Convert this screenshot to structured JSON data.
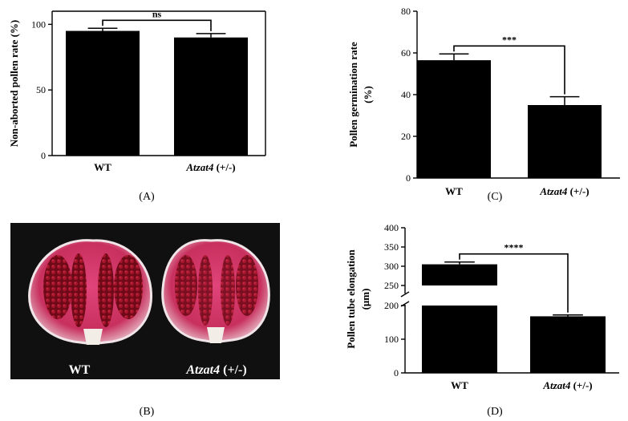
{
  "chart_data": [
    {
      "panel": "A",
      "type": "bar",
      "categories": [
        "WT",
        "Atzat4"
      ],
      "category_suffix": [
        "",
        " (+/-)"
      ],
      "italic_categories": [
        false,
        true
      ],
      "values": [
        95,
        90
      ],
      "errors": [
        2,
        3
      ],
      "ylabel": "Non-aborted pollen rate (%)",
      "ylim": [
        0,
        110
      ],
      "yticks": [
        0,
        50,
        100
      ],
      "significance": "ns"
    },
    {
      "panel": "C",
      "type": "bar",
      "categories": [
        "WT",
        "Atzat4"
      ],
      "category_suffix": [
        "",
        " (+/-)"
      ],
      "italic_categories": [
        false,
        true
      ],
      "values": [
        56.5,
        35
      ],
      "errors": [
        3,
        4
      ],
      "ylabel": "Pollen germination rate",
      "ylabel2": "(%)",
      "ylim": [
        0,
        80
      ],
      "yticks": [
        0,
        20,
        40,
        60,
        80
      ],
      "significance": "***"
    },
    {
      "panel": "D",
      "type": "bar",
      "categories": [
        "WT",
        "Atzat4"
      ],
      "category_suffix": [
        "",
        " (+/-)"
      ],
      "italic_categories": [
        false,
        true
      ],
      "values": [
        305,
        168
      ],
      "errors": [
        6,
        4
      ],
      "ylabel": "Pollen tube elongation",
      "ylabel2": "(μm)",
      "ylim": [
        0,
        400
      ],
      "axis_break": [
        200,
        200
      ],
      "yticks_lower": [
        0,
        100,
        200
      ],
      "yticks_upper": [
        250,
        300,
        350,
        400
      ],
      "significance": "****"
    }
  ],
  "panel_labels": {
    "A": "(A)",
    "B": "(B)",
    "C": "(C)",
    "D": "(D)"
  },
  "photo": {
    "left_label": "WT",
    "right_label": "Atzat4",
    "right_suffix": " (+/-)",
    "background": "#101010",
    "anther_pink": "#c8305e",
    "pollen_red": "#8a0c1c"
  },
  "colors": {
    "bar": "#000000",
    "axis": "#000000"
  }
}
